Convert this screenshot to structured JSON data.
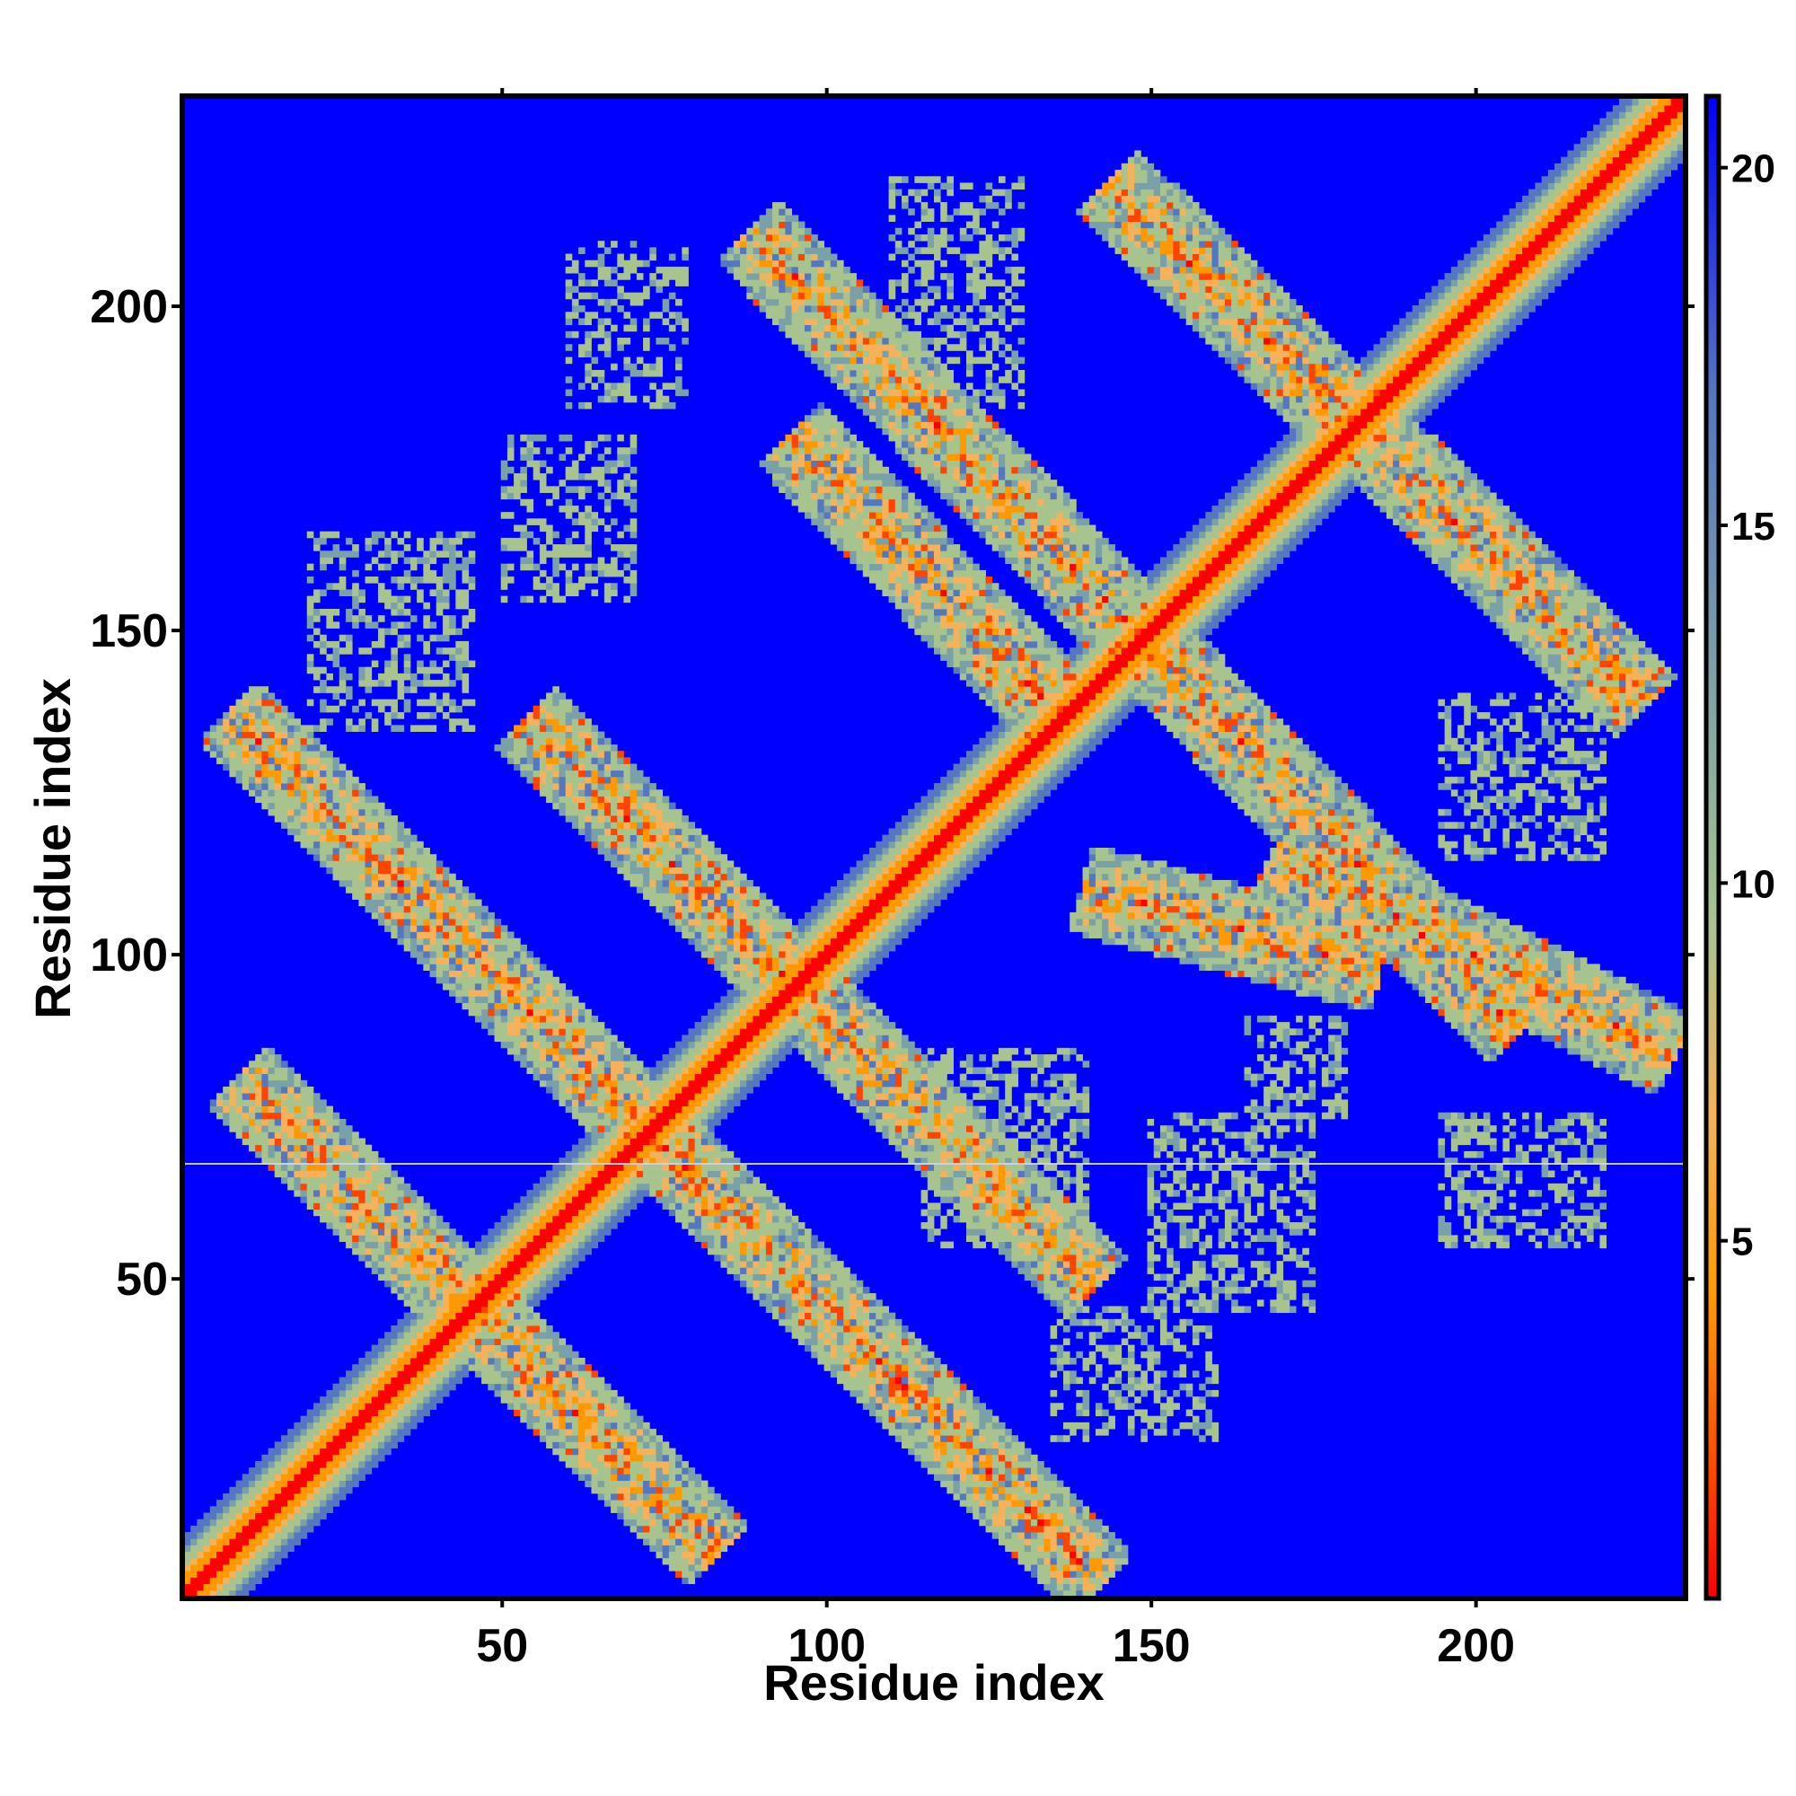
{
  "chart_data": {
    "type": "heatmap",
    "title": "",
    "xlabel": "Residue index",
    "ylabel": "Residue index",
    "x_range": [
      1,
      232
    ],
    "y_range": [
      1,
      232
    ],
    "x_ticks": [
      50,
      100,
      150,
      200
    ],
    "y_ticks": [
      50,
      100,
      150,
      200
    ],
    "colorbar": {
      "ticks": [
        5,
        10,
        15,
        20
      ],
      "range": [
        0,
        21
      ],
      "colors": [
        "#ff0000",
        "#ff4400",
        "#ff9900",
        "#f5b25a",
        "#a8c48e",
        "#7aa0a8",
        "#5577c0",
        "#0000ff"
      ]
    },
    "background_color": "#0000ff",
    "features": {
      "main_diagonal": {
        "from": 1,
        "to": 232
      },
      "antiparallel_bands": [
        {
          "start": [
            10,
            80
          ],
          "end": [
            82,
            8
          ]
        },
        {
          "start": [
            10,
            135
          ],
          "end": [
            140,
            5
          ]
        },
        {
          "start": [
            90,
            210
          ],
          "end": [
            205,
            90
          ]
        },
        {
          "start": [
            145,
            218
          ],
          "end": [
            225,
            140
          ]
        },
        {
          "start": [
            55,
            135
          ],
          "end": [
            140,
            50
          ]
        },
        {
          "start": [
            95,
            180
          ],
          "end": [
            135,
            138
          ]
        },
        {
          "start": [
            170,
            115
          ],
          "end": [
            230,
            85
          ]
        },
        {
          "start": [
            140,
            110
          ],
          "end": [
            185,
            98
          ]
        }
      ],
      "sparse_clusters": [
        {
          "x": [
            20,
            45
          ],
          "y": [
            135,
            165
          ]
        },
        {
          "x": [
            50,
            70
          ],
          "y": [
            155,
            180
          ]
        },
        {
          "x": [
            60,
            78
          ],
          "y": [
            185,
            210
          ]
        },
        {
          "x": [
            110,
            130
          ],
          "y": [
            185,
            220
          ]
        },
        {
          "x": [
            150,
            175
          ],
          "y": [
            45,
            75
          ]
        },
        {
          "x": [
            135,
            160
          ],
          "y": [
            25,
            45
          ]
        },
        {
          "x": [
            195,
            220
          ],
          "y": [
            115,
            140
          ]
        },
        {
          "x": [
            195,
            220
          ],
          "y": [
            55,
            75
          ]
        },
        {
          "x": [
            165,
            180
          ],
          "y": [
            75,
            90
          ]
        },
        {
          "x": [
            115,
            140
          ],
          "y": [
            55,
            85
          ]
        }
      ]
    }
  }
}
